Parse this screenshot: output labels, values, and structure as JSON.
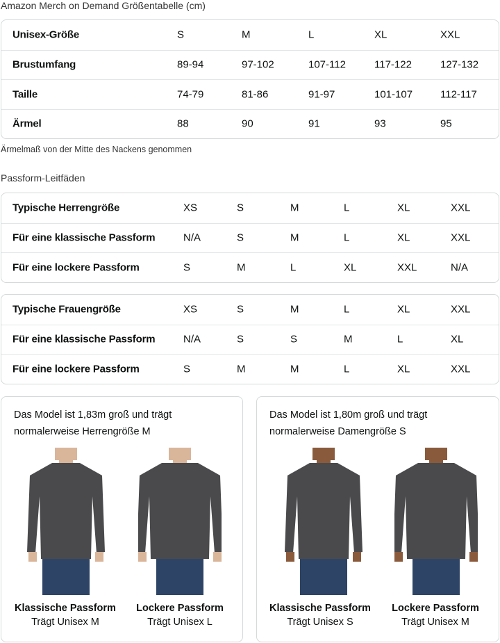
{
  "title": "Amazon Merch on Demand Größentabelle (cm)",
  "size_table": {
    "rows": [
      {
        "label": "Unisex-Größe",
        "values": [
          "S",
          "M",
          "L",
          "XL",
          "XXL"
        ]
      },
      {
        "label": "Brustumfang",
        "values": [
          "89-94",
          "97-102",
          "107-112",
          "117-122",
          "127-132"
        ]
      },
      {
        "label": "Taille",
        "values": [
          "74-79",
          "81-86",
          "91-97",
          "101-107",
          "112-117"
        ]
      },
      {
        "label": "Ärmel",
        "values": [
          "88",
          "90",
          "91",
          "93",
          "95"
        ]
      }
    ]
  },
  "note": "Ärmelmaß von der Mitte des Nackens genommen",
  "fit_title": "Passform-Leitfäden",
  "men_table": {
    "rows": [
      {
        "label": "Typische Herrengröße",
        "values": [
          "XS",
          "S",
          "M",
          "L",
          "XL",
          "XXL"
        ]
      },
      {
        "label": "Für eine klassische Passform",
        "values": [
          "N/A",
          "S",
          "M",
          "L",
          "XL",
          "XXL"
        ]
      },
      {
        "label": "Für eine lockere Passform",
        "values": [
          "S",
          "M",
          "L",
          "XL",
          "XXL",
          "N/A"
        ]
      }
    ]
  },
  "women_table": {
    "rows": [
      {
        "label": "Typische Frauengröße",
        "values": [
          "XS",
          "S",
          "M",
          "L",
          "XL",
          "XXL"
        ]
      },
      {
        "label": "Für eine klassische Passform",
        "values": [
          "N/A",
          "S",
          "S",
          "M",
          "L",
          "XL"
        ]
      },
      {
        "label": "Für eine lockere Passform",
        "values": [
          "S",
          "M",
          "M",
          "L",
          "XL",
          "XXL"
        ]
      }
    ]
  },
  "cards": [
    {
      "text": "Das Model ist 1,83m groß und trägt normalerweise Herrengröße M",
      "figures": [
        {
          "fit": "Klassische Passform",
          "wears": "Trägt Unisex M"
        },
        {
          "fit": "Lockere Passform",
          "wears": "Trägt Unisex L"
        }
      ]
    },
    {
      "text": "Das Model ist 1,80m groß und trägt normalerweise Damengröße S",
      "figures": [
        {
          "fit": "Klassische Passform",
          "wears": "Trägt Unisex S"
        },
        {
          "fit": "Lockere Passform",
          "wears": "Trägt Unisex M"
        }
      ]
    }
  ],
  "colors": {
    "shirt": "#4a4a4d",
    "jeans": "#2e4466",
    "skin_men": "#d9b59a",
    "skin_women": "#8a5a3c",
    "border": "#d5d9d9"
  }
}
